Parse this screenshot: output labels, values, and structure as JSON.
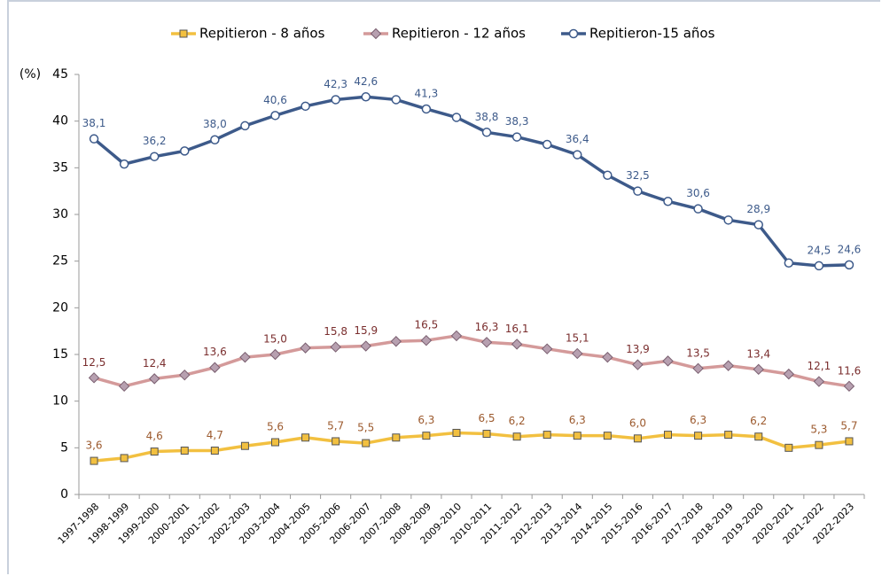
{
  "chart_data": {
    "type": "line",
    "y_label": "(%)",
    "categories": [
      "1997-1998",
      "1998-1999",
      "1999-2000",
      "2000-2001",
      "2001-2002",
      "2002-2003",
      "2003-2004",
      "2004-2005",
      "2005-2006",
      "2006-2007",
      "2007-2008",
      "2008-2009",
      "2009-2010",
      "2010-2011",
      "2011-2012",
      "2012-2013",
      "2013-2014",
      "2014-2015",
      "2015-2016",
      "2016-2017",
      "2017-2018",
      "2018-2019",
      "2019-2020",
      "2020-2021",
      "2021-2022",
      "2022-2023"
    ],
    "ylim": [
      0,
      45
    ],
    "yticks": [
      0,
      5,
      10,
      15,
      20,
      25,
      30,
      35,
      40,
      45
    ],
    "legend": "top",
    "series": [
      {
        "name": "Repitieron - 8 años",
        "color": "#f2c040",
        "marker": "square",
        "label_color": "#9c5a2e",
        "values": [
          3.6,
          3.9,
          4.6,
          4.7,
          4.7,
          5.2,
          5.6,
          6.1,
          5.7,
          5.5,
          6.1,
          6.3,
          6.6,
          6.5,
          6.2,
          6.4,
          6.3,
          6.3,
          6.0,
          6.4,
          6.3,
          6.4,
          6.2,
          5.0,
          5.3,
          5.7
        ],
        "value_labels": [
          "3,6",
          null,
          "4,6",
          null,
          "4,7",
          null,
          "5,6",
          null,
          "5,7",
          "5,5",
          null,
          "6,3",
          null,
          "6,5",
          "6,2",
          null,
          "6,3",
          null,
          "6,0",
          null,
          "6,3",
          null,
          "6,2",
          null,
          "5,3",
          "5,7"
        ]
      },
      {
        "name": "Repitieron - 12 años",
        "color": "#d49a9a",
        "marker": "diamond",
        "label_color": "#7a2e2e",
        "values": [
          12.5,
          11.6,
          12.4,
          12.8,
          13.6,
          14.7,
          15.0,
          15.7,
          15.8,
          15.9,
          16.4,
          16.5,
          17.0,
          16.3,
          16.1,
          15.6,
          15.1,
          14.7,
          13.9,
          14.3,
          13.5,
          13.8,
          13.4,
          12.9,
          12.1,
          11.6
        ],
        "value_labels": [
          "12,5",
          null,
          "12,4",
          null,
          "13,6",
          null,
          "15,0",
          null,
          "15,8",
          "15,9",
          null,
          "16,5",
          null,
          "16,3",
          "16,1",
          null,
          "15,1",
          null,
          "13,9",
          null,
          "13,5",
          null,
          "13,4",
          null,
          "12,1",
          "11,6"
        ]
      },
      {
        "name": "Repitieron-15 años",
        "color": "#3d5a8a",
        "marker": "circle",
        "label_color": "#3d5a8a",
        "values": [
          38.1,
          35.4,
          36.2,
          36.8,
          38.0,
          39.5,
          40.6,
          41.6,
          42.3,
          42.6,
          42.3,
          41.3,
          40.4,
          38.8,
          38.3,
          37.5,
          36.4,
          34.2,
          32.5,
          31.4,
          30.6,
          29.4,
          28.9,
          24.8,
          24.5,
          24.6
        ],
        "value_labels": [
          "38,1",
          null,
          "36,2",
          null,
          "38,0",
          null,
          "40,6",
          null,
          "42,3",
          "42,6",
          null,
          "41,3",
          null,
          "38,8",
          "38,3",
          null,
          "36,4",
          null,
          "32,5",
          null,
          "30,6",
          null,
          "28,9",
          null,
          "24,5",
          "24,6"
        ]
      }
    ]
  }
}
